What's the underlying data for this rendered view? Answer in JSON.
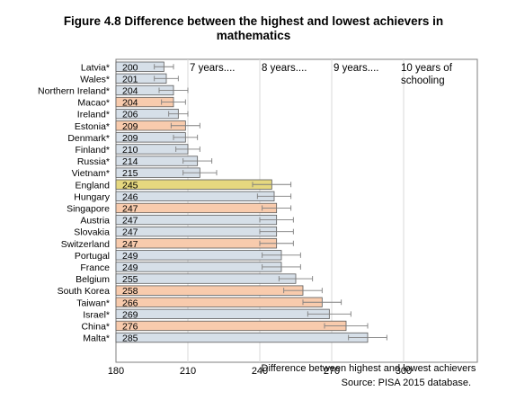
{
  "title_line1": "Figure 4.8 Difference between the highest and lowest achievers in",
  "title_line2": "mathematics",
  "source": "Source: PISA 2015 database.",
  "chart_data": {
    "type": "bar",
    "orientation": "horizontal",
    "xlabel": "Difference between highest and lowest achievers",
    "xlim": [
      180,
      300
    ],
    "xticks": [
      180,
      210,
      240,
      270,
      300
    ],
    "grid": "vertical reference lines at year markers",
    "categories": [
      "Latvia*",
      "Wales*",
      "Northern Ireland*",
      "Macao*",
      "Ireland*",
      "Estonia*",
      "Denmark*",
      "Finland*",
      "Russia*",
      "Vietnam*",
      "England",
      "Hungary",
      "Singapore",
      "Austria",
      "Slovakia",
      "Switzerland",
      "Portugal",
      "France",
      "Belgium",
      "South Korea",
      "Taiwan*",
      "Israel*",
      "China*",
      "Malta*"
    ],
    "values": [
      200,
      201,
      204,
      204,
      206,
      209,
      209,
      210,
      214,
      215,
      245,
      246,
      247,
      247,
      247,
      247,
      249,
      249,
      255,
      258,
      266,
      269,
      276,
      285
    ],
    "ci_half_width": [
      4,
      5,
      6,
      5,
      4,
      6,
      5,
      5,
      6,
      7,
      8,
      7,
      6,
      7,
      7,
      7,
      8,
      8,
      7,
      8,
      8,
      9,
      9,
      8
    ],
    "highlight": [
      "default",
      "default",
      "default",
      "orange",
      "default",
      "orange",
      "default",
      "default",
      "default",
      "default",
      "yellow",
      "default",
      "orange",
      "default",
      "default",
      "orange",
      "default",
      "default",
      "default",
      "orange",
      "orange",
      "default",
      "orange",
      "default"
    ],
    "colors": {
      "default": "#d6dfe8",
      "orange": "#f8cbad",
      "yellow": "#e6d87f",
      "bar_border": "#5a5a5a",
      "error_bar": "#7f7f7f",
      "refline": "#d9d9d9"
    },
    "annotations": [
      {
        "text": "7 years....",
        "at": 210
      },
      {
        "text": "8 years....",
        "at": 240
      },
      {
        "text": "9 years....",
        "at": 270
      },
      {
        "text": "10 years of",
        "text2": "schooling",
        "at": 300
      }
    ]
  }
}
